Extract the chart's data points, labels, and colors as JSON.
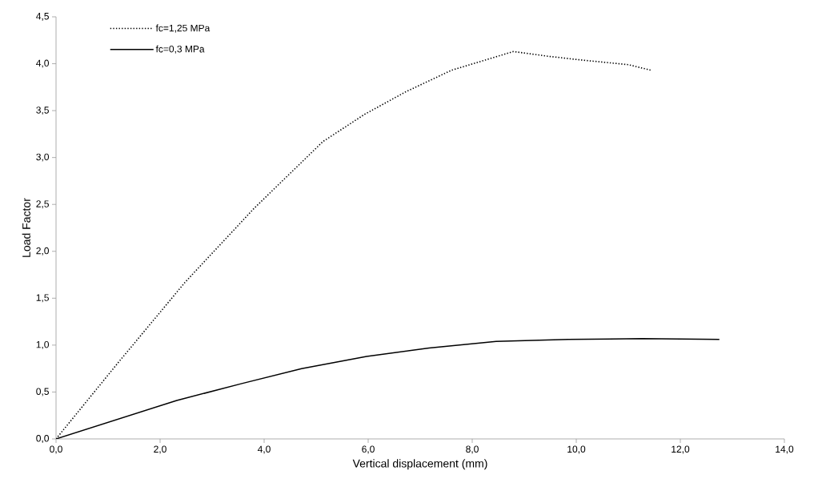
{
  "chart_data": {
    "type": "line",
    "xlabel": "Vertical displacement (mm)",
    "ylabel": "Load Factor",
    "xlim": [
      0,
      14
    ],
    "ylim": [
      0,
      4.5
    ],
    "xticks": [
      {
        "value": 0,
        "label": "0,0"
      },
      {
        "value": 2,
        "label": "2,0"
      },
      {
        "value": 4,
        "label": "4,0"
      },
      {
        "value": 6,
        "label": "6,0"
      },
      {
        "value": 8,
        "label": "8,0"
      },
      {
        "value": 10,
        "label": "10,0"
      },
      {
        "value": 12,
        "label": "12,0"
      },
      {
        "value": 14,
        "label": "14,0"
      }
    ],
    "yticks": [
      {
        "value": 0,
        "label": "0,0"
      },
      {
        "value": 0.5,
        "label": "0,5"
      },
      {
        "value": 1,
        "label": "1,0"
      },
      {
        "value": 1.5,
        "label": "1,5"
      },
      {
        "value": 2,
        "label": "2,0"
      },
      {
        "value": 2.5,
        "label": "2,5"
      },
      {
        "value": 3,
        "label": "3,0"
      },
      {
        "value": 3.5,
        "label": "3,5"
      },
      {
        "value": 4,
        "label": "4,0"
      },
      {
        "value": 4.5,
        "label": "4,5"
      }
    ],
    "grid": false,
    "legend": "top left",
    "marker": "none",
    "series": [
      {
        "name": "fc=1,25 MPa",
        "color": "#000000",
        "line_style": "dotted",
        "x": [
          0,
          1.16,
          2.48,
          3.81,
          5.13,
          5.93,
          6.72,
          7.6,
          8.79,
          9.45,
          10.09,
          11.0,
          11.44
        ],
        "values": [
          0,
          0.79,
          1.67,
          2.46,
          3.17,
          3.46,
          3.7,
          3.93,
          4.13,
          4.08,
          4.04,
          3.99,
          3.93
        ]
      },
      {
        "name": "fc=0,3 MPa",
        "color": "#000000",
        "line_style": "solid",
        "x": [
          0,
          2.32,
          3.57,
          4.72,
          5.97,
          7.17,
          8.46,
          9.84,
          11.27,
          12.75
        ],
        "values": [
          0,
          0.41,
          0.59,
          0.75,
          0.88,
          0.97,
          1.04,
          1.06,
          1.07,
          1.06
        ]
      }
    ]
  }
}
